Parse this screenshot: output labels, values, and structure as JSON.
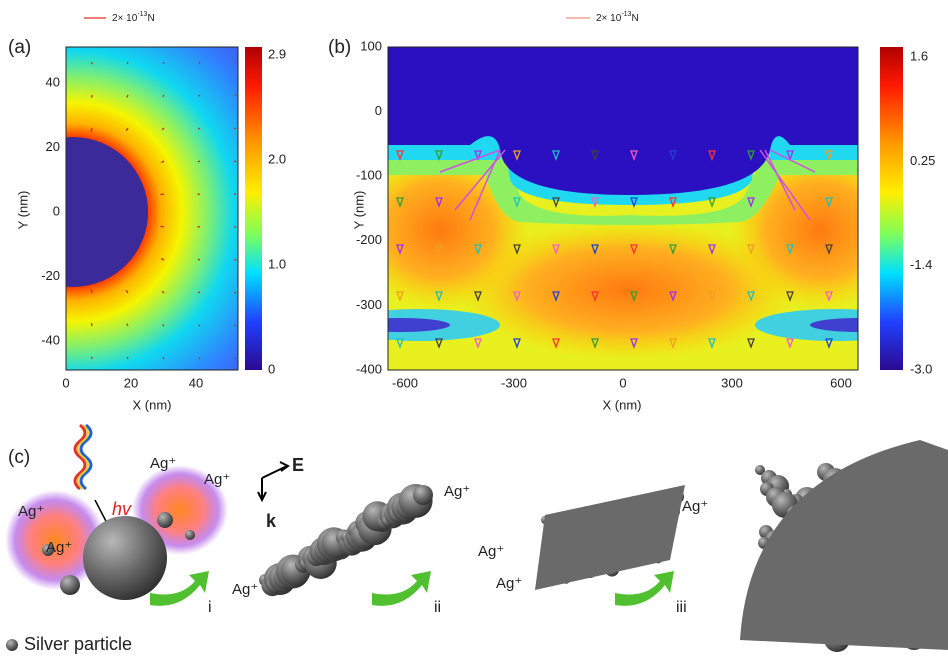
{
  "panel_a": {
    "label": "(a)",
    "scale_text": "2×  10",
    "scale_exp": "-13",
    "scale_unit": "N",
    "y_title": "Y (nm)",
    "x_title": "X (nm)",
    "yticks": [
      "40",
      "20",
      "0",
      "-20",
      "-40"
    ],
    "xticks": [
      "0",
      "20",
      "40"
    ],
    "colorbar_ticks": [
      "2.9",
      "2.0",
      "1.0",
      "0"
    ]
  },
  "panel_b": {
    "label": "(b)",
    "scale_text": "2×  10",
    "scale_exp": "-13",
    "scale_unit": "N",
    "y_title": "Y (nm)",
    "x_title": "X (nm)",
    "yticks": [
      "100",
      "0",
      "-100",
      "-200",
      "-300",
      "-400"
    ],
    "xticks": [
      "-600",
      "-300",
      "0",
      "300",
      "600"
    ],
    "colorbar_ticks": [
      "1.6",
      "0.25",
      "-1.4",
      "-3.0"
    ]
  },
  "panel_c": {
    "label": "(c)",
    "hv": "hv",
    "ion_labels": [
      "Ag⁺",
      "Ag⁺",
      "Ag⁺",
      "Ag⁺",
      "Ag⁺",
      "Ag⁺",
      "Ag⁺",
      "Ag⁺",
      "Ag⁺"
    ],
    "e_label": "E",
    "k_label": "k",
    "steps": [
      "i",
      "ii",
      "iii"
    ],
    "legend": "Silver particle"
  }
}
